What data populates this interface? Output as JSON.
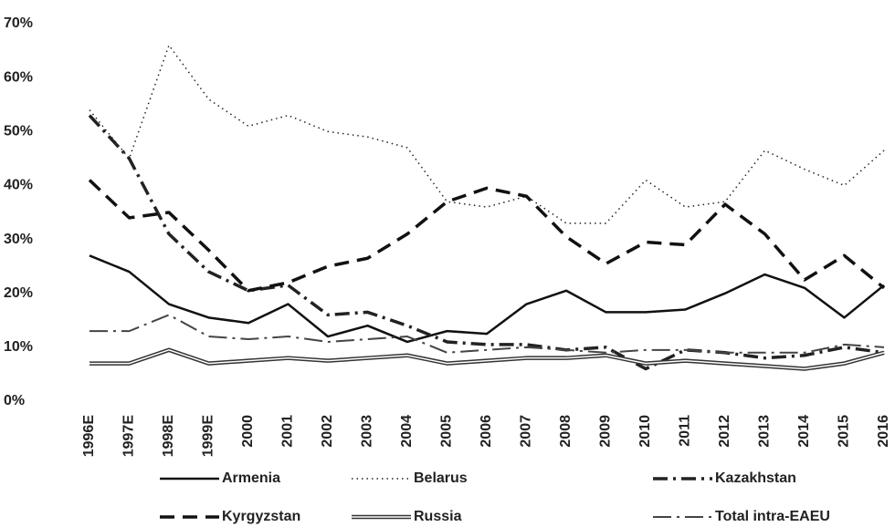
{
  "chart_data": {
    "type": "line",
    "categories": [
      "1996E",
      "1997E",
      "1998E",
      "1999E",
      "2000",
      "2001",
      "2002",
      "2003",
      "2004",
      "2005",
      "2006",
      "2007",
      "2008",
      "2009",
      "2010",
      "2011",
      "2012",
      "2013",
      "2014",
      "2015",
      "2016"
    ],
    "series": [
      {
        "name": "Armenia",
        "color": "#111111",
        "dash": "solid",
        "values": [
          27,
          24,
          18,
          15.5,
          14.5,
          18,
          12,
          14,
          11,
          13,
          12.5,
          18,
          20.5,
          16.5,
          16.5,
          17,
          20,
          23.5,
          21,
          15.5,
          21.5
        ]
      },
      {
        "name": "Belarus",
        "color": "#222222",
        "dash": "dotted",
        "values": [
          54,
          45,
          66,
          56,
          51,
          53,
          50,
          49,
          47,
          37,
          36,
          38,
          33,
          33,
          41,
          36,
          37,
          46.5,
          43,
          40,
          46.5
        ]
      },
      {
        "name": "Kazakhstan",
        "color": "#222222",
        "dash": "dashdot",
        "values": [
          53,
          45,
          31,
          24,
          20.5,
          21.5,
          16,
          16.5,
          14,
          11,
          10.5,
          10.5,
          9.5,
          10,
          6,
          9.5,
          9,
          8,
          8.5,
          10,
          9
        ]
      },
      {
        "name": "Kyrgyzstan",
        "color": "#111111",
        "dash": "dashed",
        "values": [
          41,
          34,
          35,
          28,
          20.5,
          22,
          25,
          26.5,
          31,
          37,
          39.5,
          38,
          30.5,
          25.5,
          29.5,
          29,
          36.5,
          31,
          22.5,
          27,
          21
        ]
      },
      {
        "name": "Russia",
        "color": "#333333",
        "dash": "double",
        "values": [
          7,
          7,
          9.5,
          7,
          7.5,
          8,
          7.5,
          8,
          8.5,
          7,
          7.5,
          8,
          8,
          8.5,
          7,
          7.5,
          7,
          6.5,
          6,
          7,
          9
        ]
      },
      {
        "name": "Total intra-EAEU",
        "color": "#444444",
        "dash": "longdashdot",
        "values": [
          13,
          13,
          16,
          12,
          11.5,
          12,
          11,
          11.5,
          12,
          9,
          9.5,
          10,
          9.5,
          9,
          9.5,
          9.5,
          9,
          9,
          9,
          10.5,
          10
        ]
      }
    ],
    "ylim": [
      0,
      70
    ],
    "yticks": [
      {
        "value": 0,
        "label": "0%"
      },
      {
        "value": 10,
        "label": "10%"
      },
      {
        "value": 20,
        "label": "20%"
      },
      {
        "value": 30,
        "label": "30%"
      },
      {
        "value": 40,
        "label": "40%"
      },
      {
        "value": 50,
        "label": "50%"
      },
      {
        "value": 60,
        "label": "60%"
      },
      {
        "value": 70,
        "label": "70%"
      }
    ],
    "grid": false
  }
}
